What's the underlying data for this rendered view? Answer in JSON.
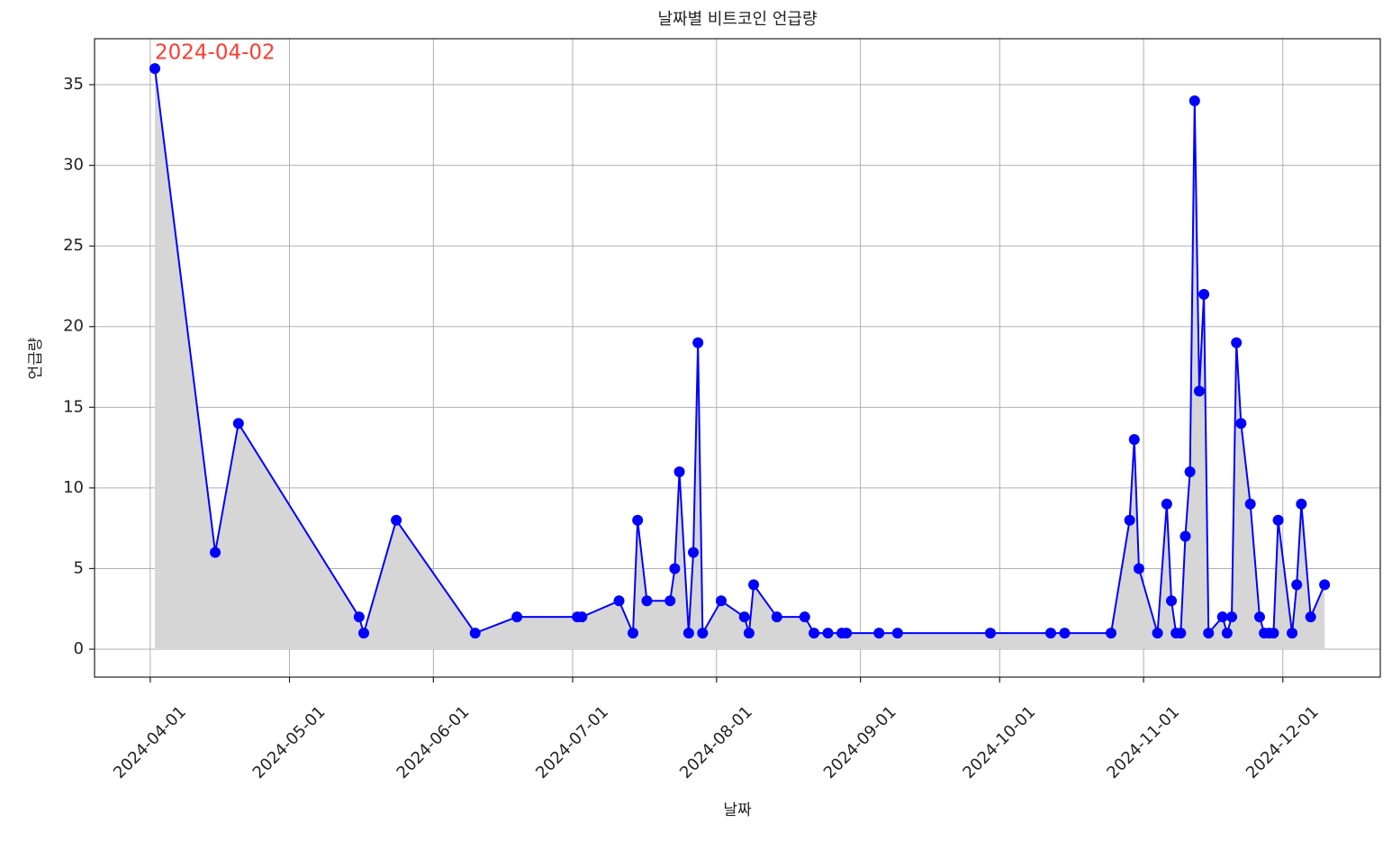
{
  "chart_data": {
    "type": "line",
    "title": "날짜별 비트코인 언급량",
    "x_label": "날짜",
    "y_label": "언급량",
    "x": [
      "2024-04-02",
      "2024-04-15",
      "2024-04-20",
      "2024-05-16",
      "2024-05-17",
      "2024-05-24",
      "2024-06-10",
      "2024-06-19",
      "2024-07-02",
      "2024-07-03",
      "2024-07-11",
      "2024-07-14",
      "2024-07-15",
      "2024-07-17",
      "2024-07-22",
      "2024-07-23",
      "2024-07-24",
      "2024-07-26",
      "2024-07-27",
      "2024-07-28",
      "2024-07-29",
      "2024-08-02",
      "2024-08-07",
      "2024-08-08",
      "2024-08-09",
      "2024-08-14",
      "2024-08-20",
      "2024-08-22",
      "2024-08-25",
      "2024-08-28",
      "2024-08-29",
      "2024-09-05",
      "2024-09-09",
      "2024-09-29",
      "2024-10-12",
      "2024-10-15",
      "2024-10-25",
      "2024-10-29",
      "2024-10-30",
      "2024-10-31",
      "2024-11-04",
      "2024-11-06",
      "2024-11-07",
      "2024-11-08",
      "2024-11-09",
      "2024-11-10",
      "2024-11-11",
      "2024-11-12",
      "2024-11-13",
      "2024-11-14",
      "2024-11-15",
      "2024-11-18",
      "2024-11-19",
      "2024-11-20",
      "2024-11-21",
      "2024-11-22",
      "2024-11-24",
      "2024-11-26",
      "2024-11-27",
      "2024-11-28",
      "2024-11-29",
      "2024-11-30",
      "2024-12-03",
      "2024-12-04",
      "2024-12-05",
      "2024-12-07",
      "2024-12-10"
    ],
    "series": [
      {
        "color": "#0000ff",
        "fill_color": "#d6d6d6",
        "values": [
          36,
          6,
          14,
          2,
          1,
          8,
          1,
          2,
          2,
          2,
          3,
          1,
          8,
          3,
          3,
          5,
          11,
          1,
          6,
          19,
          1,
          3,
          2,
          1,
          4,
          2,
          2,
          1,
          1,
          1,
          1,
          1,
          1,
          1,
          1,
          1,
          1,
          8,
          13,
          5,
          1,
          9,
          3,
          1,
          1,
          7,
          11,
          34,
          16,
          22,
          1,
          2,
          1,
          2,
          19,
          14,
          9,
          2,
          1,
          1,
          1,
          8,
          1,
          4,
          9,
          2,
          4
        ]
      }
    ],
    "annotations": [
      {
        "text": "2024-04-02",
        "x": "2024-04-02",
        "y": 36,
        "color": "#ff3b30"
      }
    ],
    "xlim": [
      "2024-03-20",
      "2024-12-22"
    ],
    "xticks": [
      "2024-04-01",
      "2024-05-01",
      "2024-06-01",
      "2024-07-01",
      "2024-08-01",
      "2024-09-01",
      "2024-10-01",
      "2024-11-01",
      "2024-12-01"
    ],
    "ylim": [
      -1.73,
      37.85
    ],
    "yticks": [
      0,
      5,
      10,
      15,
      20,
      25,
      30,
      35
    ],
    "grid": true
  }
}
